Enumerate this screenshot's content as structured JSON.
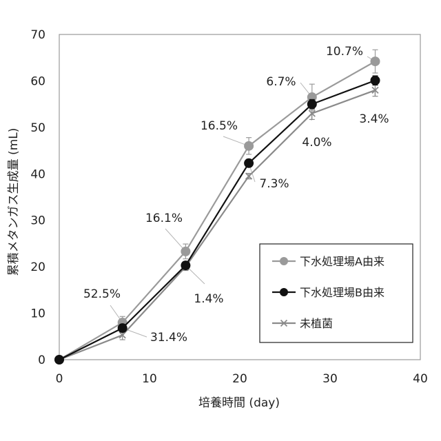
{
  "chart_data": {
    "type": "line",
    "xlabel": "培養時間 (day)",
    "ylabel": "累積メタンガス生成量 (mL)",
    "xlim": [
      0,
      40
    ],
    "ylim": [
      0,
      70
    ],
    "xticks": [
      "0",
      "10",
      "20",
      "30",
      "40"
    ],
    "yticks": [
      "0",
      "10",
      "20",
      "30",
      "40",
      "50",
      "60",
      "70"
    ],
    "grid": false,
    "legend_position": "bottom-right",
    "x": [
      0,
      7,
      14,
      21,
      28,
      35
    ],
    "series": [
      {
        "name": "下水処理場A由来",
        "color": "#9a9a9a",
        "marker": "circle",
        "values": [
          0,
          8.0,
          23.3,
          46.0,
          56.5,
          64.2
        ],
        "errors": [
          0,
          1.3,
          1.6,
          1.8,
          2.8,
          2.5
        ]
      },
      {
        "name": "下水処理場B由来",
        "color": "#111111",
        "marker": "circle",
        "values": [
          0,
          6.8,
          20.3,
          42.3,
          55.0,
          60.1
        ],
        "errors": [
          0,
          0.8,
          0.8,
          0.8,
          1.0,
          1.0
        ]
      },
      {
        "name": "未植菌",
        "color": "#8a8a8a",
        "marker": "x",
        "values": [
          0,
          5.3,
          20.0,
          39.5,
          53.0,
          58.0
        ],
        "errors": [
          0,
          1.0,
          0.8,
          0.6,
          1.3,
          1.3
        ]
      }
    ],
    "annotations": [
      {
        "text": "52.5%",
        "x": 7,
        "y": 8.0,
        "series": "下水処理場A由来"
      },
      {
        "text": "31.4%",
        "x": 7,
        "y": 6.8,
        "series": "下水処理場B由来"
      },
      {
        "text": "16.1%",
        "x": 14,
        "y": 23.3,
        "series": "下水処理場A由来"
      },
      {
        "text": "1.4%",
        "x": 14,
        "y": 20.3,
        "series": "下水処理場B由来"
      },
      {
        "text": "16.5%",
        "x": 21,
        "y": 46.0,
        "series": "下水処理場A由来"
      },
      {
        "text": "7.3%",
        "x": 21,
        "y": 42.3,
        "series": "下水処理場B由来"
      },
      {
        "text": "6.7%",
        "x": 28,
        "y": 56.5,
        "series": "下水処理場A由来"
      },
      {
        "text": "4.0%",
        "x": 28,
        "y": 55.0,
        "series": "下水処理場B由来"
      },
      {
        "text": "10.7%",
        "x": 35,
        "y": 64.2,
        "series": "下水処理場A由来"
      },
      {
        "text": "3.4%",
        "x": 35,
        "y": 60.1,
        "series": "下水処理場B由来"
      }
    ]
  }
}
